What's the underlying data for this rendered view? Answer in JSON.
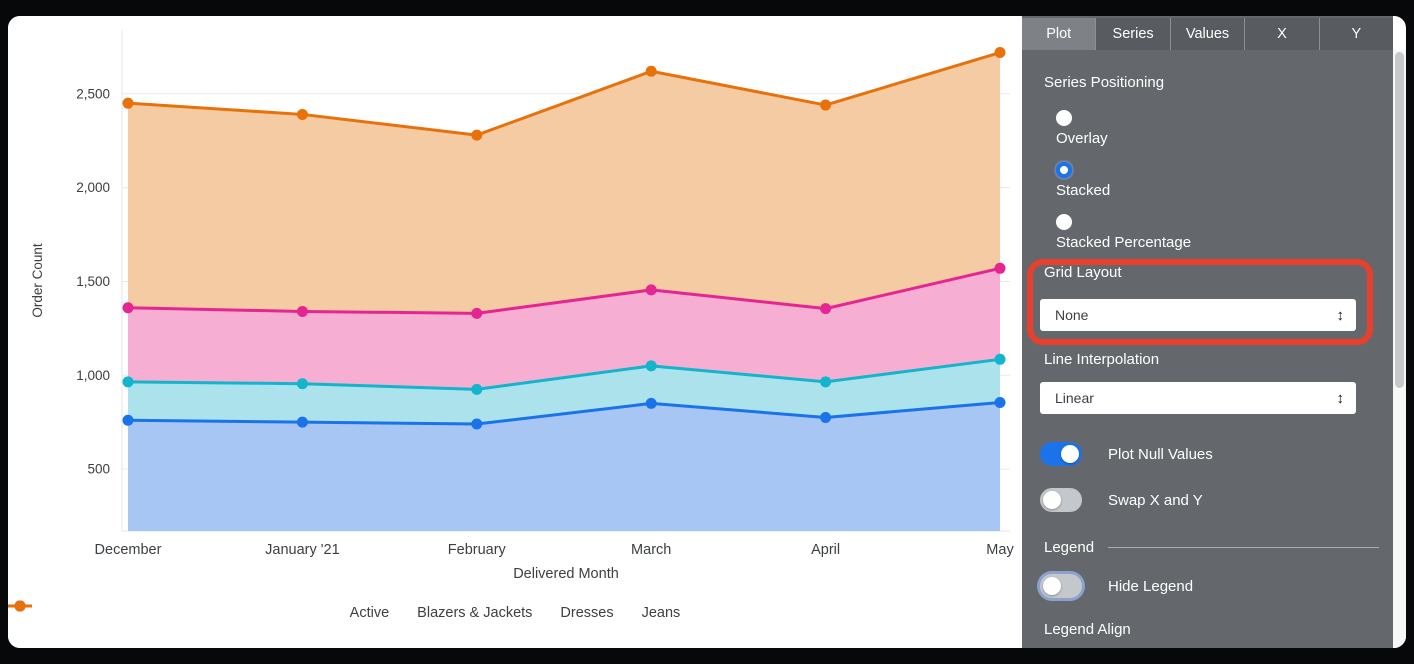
{
  "chart_data": {
    "type": "area",
    "title": "",
    "xlabel": "Delivered Month",
    "ylabel": "Order Count",
    "x": [
      "December",
      "January '21",
      "February",
      "March",
      "April",
      "May"
    ],
    "yticks": [
      500,
      1000,
      1500,
      2000,
      2500
    ],
    "ytick_labels": [
      "500",
      "1,000",
      "1,500",
      "2,000",
      "2,500"
    ],
    "ylim": [
      170,
      2840
    ],
    "grid": true,
    "legend_position": "bottom",
    "series": [
      {
        "name": "Jeans",
        "color": "#E8710A",
        "fill": "#F5CBA4",
        "values": [
          2450,
          2390,
          2280,
          2620,
          2440,
          2720
        ]
      },
      {
        "name": "Dresses",
        "color": "#E52592",
        "fill": "#F6AFD3",
        "values": [
          1360,
          1340,
          1330,
          1455,
          1355,
          1570
        ]
      },
      {
        "name": "Blazers & Jackets",
        "color": "#12B5CB",
        "fill": "#ACE2EB",
        "values": [
          965,
          955,
          925,
          1050,
          965,
          1085
        ]
      },
      {
        "name": "Active",
        "color": "#1A73E8",
        "fill": "#A8C6F3",
        "values": [
          760,
          750,
          740,
          850,
          775,
          855
        ]
      }
    ],
    "legend_order": [
      "Active",
      "Blazers & Jackets",
      "Dresses",
      "Jeans"
    ]
  },
  "panel": {
    "tabs": [
      {
        "label": "Plot",
        "selected": true
      },
      {
        "label": "Series",
        "selected": false
      },
      {
        "label": "Values",
        "selected": false
      },
      {
        "label": "X",
        "selected": false
      },
      {
        "label": "Y",
        "selected": false
      }
    ],
    "series_positioning": {
      "label": "Series Positioning",
      "options": [
        {
          "label": "Overlay",
          "selected": false
        },
        {
          "label": "Stacked",
          "selected": true
        },
        {
          "label": "Stacked Percentage",
          "selected": false
        }
      ]
    },
    "grid_layout": {
      "label": "Grid Layout",
      "value": "None"
    },
    "line_interpolation": {
      "label": "Line Interpolation",
      "value": "Linear"
    },
    "plot_null_values": {
      "label": "Plot Null Values",
      "on": true
    },
    "swap_x_y": {
      "label": "Swap X and Y",
      "on": false
    },
    "legend": {
      "heading": "Legend",
      "hide_legend": {
        "label": "Hide Legend",
        "on": false,
        "focused": true
      },
      "align_label": "Legend Align"
    },
    "colors": {
      "panel_bg": "#64686C",
      "tabbar_bg": "#585C60",
      "tab_selected_bg": "#7E8286",
      "accent_blue": "#1A73E8",
      "toggle_off": "#C4C7CB"
    }
  },
  "annotation": {
    "shape": "rounded-rect",
    "color": "#E8402C"
  },
  "icons": {
    "unfold_more": "↕"
  }
}
